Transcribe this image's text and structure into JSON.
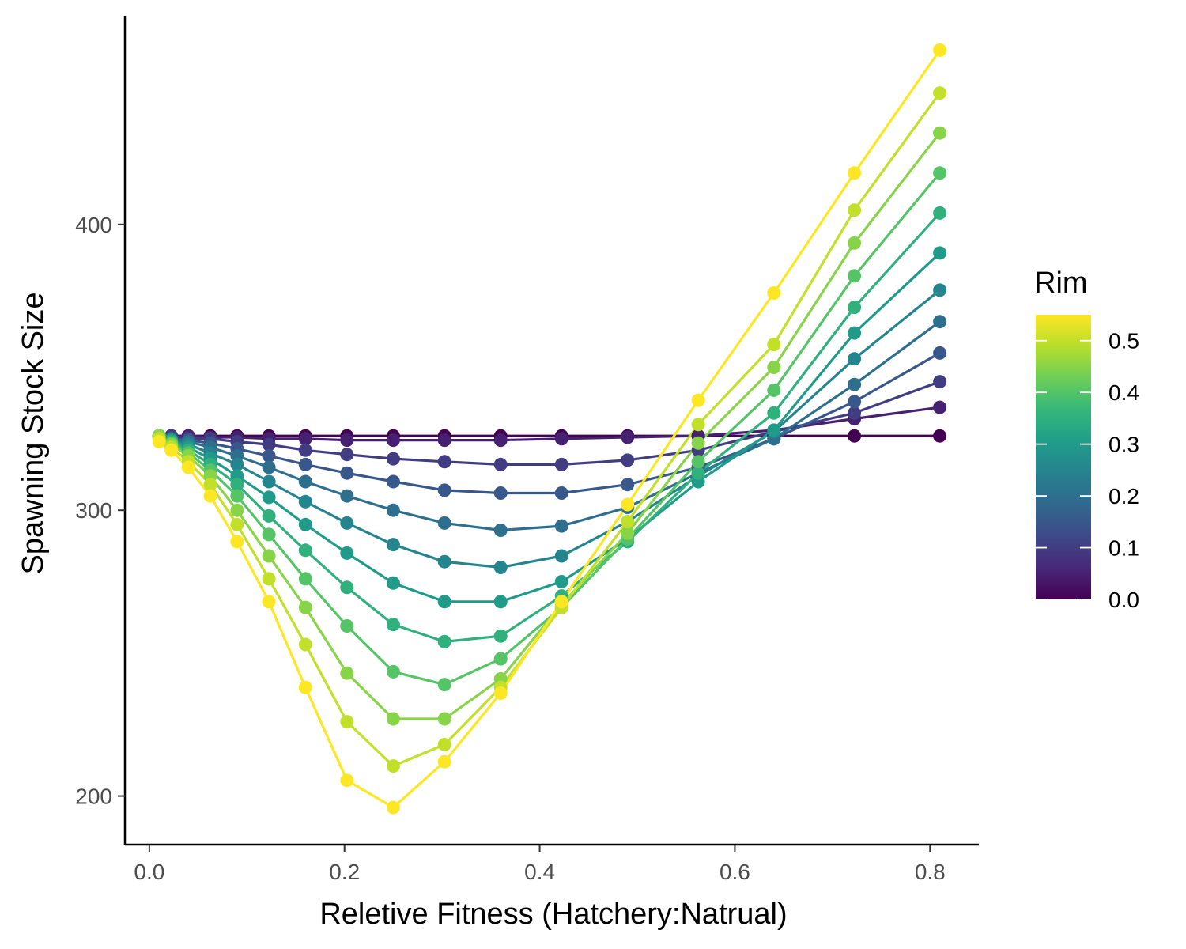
{
  "chart_data": {
    "type": "line",
    "xlabel": "Reletive Fitness (Hatchery:Natrual)",
    "ylabel": "Spawning Stock Size",
    "xlim": [
      -0.025,
      0.85
    ],
    "ylim": [
      183,
      473
    ],
    "x_ticks": [
      0.0,
      0.2,
      0.4,
      0.6,
      0.8
    ],
    "x_tick_labels": [
      "0.0",
      "0.2",
      "0.4",
      "0.6",
      "0.8"
    ],
    "y_ticks": [
      200,
      300,
      400
    ],
    "y_tick_labels": [
      "200",
      "300",
      "400"
    ],
    "x": [
      0.01,
      0.0225,
      0.04,
      0.0625,
      0.09,
      0.1225,
      0.16,
      0.2025,
      0.25,
      0.3025,
      0.36,
      0.4225,
      0.49,
      0.5625,
      0.64,
      0.7225,
      0.81
    ],
    "series": [
      {
        "value": 0.0,
        "values": [
          326,
          326,
          326,
          326,
          326,
          326,
          326,
          326,
          326,
          326,
          326,
          326,
          326,
          326,
          326,
          326,
          326
        ]
      },
      {
        "value": 0.05,
        "values": [
          326,
          326,
          326,
          325.5,
          325.5,
          325,
          325,
          324.5,
          324.5,
          324.5,
          324.5,
          325,
          325.5,
          326,
          328,
          332,
          336
        ]
      },
      {
        "value": 0.1,
        "values": [
          326,
          326,
          325,
          325,
          324,
          323,
          321,
          319.5,
          318,
          317,
          316,
          316,
          317.5,
          321,
          327.5,
          334,
          345
        ]
      },
      {
        "value": 0.15,
        "values": [
          326,
          325,
          324.5,
          323.5,
          321.5,
          319,
          316,
          313,
          310,
          307,
          306,
          306,
          309,
          315,
          325,
          338,
          355
        ]
      },
      {
        "value": 0.2,
        "values": [
          326,
          325,
          324,
          322,
          319,
          315,
          310,
          305,
          300,
          295.5,
          293,
          294.5,
          301,
          313,
          325,
          344,
          366
        ]
      },
      {
        "value": 0.25,
        "values": [
          326,
          324.5,
          323,
          320,
          316,
          310,
          303,
          295.5,
          288,
          282,
          280,
          284,
          296,
          312,
          327.5,
          353,
          377
        ]
      },
      {
        "value": 0.3,
        "values": [
          326,
          324.5,
          322,
          318,
          312,
          304.5,
          295,
          285,
          274.5,
          268,
          268,
          275,
          290,
          310,
          328,
          362,
          390
        ]
      },
      {
        "value": 0.35,
        "values": [
          326,
          324,
          321,
          316,
          309,
          298,
          286,
          273,
          260,
          254,
          256,
          270,
          289,
          313,
          334,
          371,
          404
        ]
      },
      {
        "value": 0.4,
        "values": [
          326,
          323.5,
          320,
          314,
          305,
          291.5,
          276,
          259.5,
          243.5,
          239,
          248,
          266,
          290,
          317,
          342,
          382,
          418
        ]
      },
      {
        "value": 0.45,
        "values": [
          326,
          323,
          319,
          312,
          300,
          284,
          266,
          243,
          227,
          227,
          241,
          267,
          292,
          323.5,
          350,
          393.5,
          432
        ]
      },
      {
        "value": 0.5,
        "values": [
          325,
          322,
          317,
          309,
          295,
          276,
          253,
          226,
          210.5,
          218,
          238,
          266,
          296,
          330,
          358,
          405,
          446
        ]
      },
      {
        "value": 0.55,
        "values": [
          324,
          321,
          315,
          305,
          289,
          268,
          238,
          205.5,
          196,
          212,
          236,
          268,
          302,
          338.5,
          376,
          418,
          461
        ]
      }
    ],
    "legend": {
      "title": "Rim",
      "type": "colorbar",
      "position": "right",
      "range": [
        0.0,
        0.55
      ],
      "ticks": [
        0.0,
        0.1,
        0.2,
        0.3,
        0.4,
        0.5
      ],
      "tick_labels": [
        "0.0",
        "0.1",
        "0.2",
        "0.3",
        "0.4",
        "0.5"
      ]
    },
    "colormap": [
      "#440154",
      "#482878",
      "#3e4989",
      "#31688e",
      "#26828e",
      "#1f9e89",
      "#35b779",
      "#6ece58",
      "#b5de2b",
      "#fde725"
    ],
    "grid": false
  }
}
